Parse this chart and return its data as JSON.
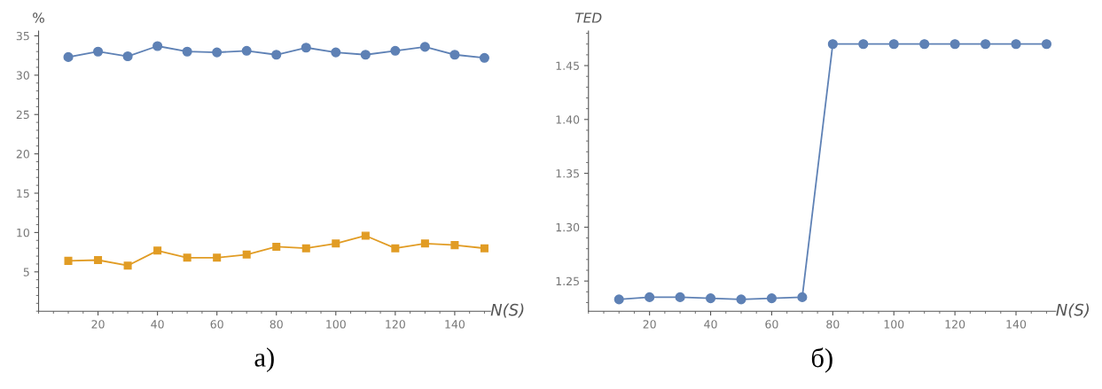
{
  "chart_data": [
    {
      "type": "line",
      "ylabel": "%",
      "xlabel": "N(S)",
      "annotations": [
        "а)"
      ],
      "x": [
        10,
        20,
        30,
        40,
        50,
        60,
        70,
        80,
        90,
        100,
        110,
        120,
        130,
        140,
        150
      ],
      "series": [
        {
          "color": "#5e81b5",
          "marker": "circle",
          "values": [
            32.3,
            33.0,
            32.4,
            33.7,
            33.0,
            32.9,
            33.1,
            32.6,
            33.5,
            32.9,
            32.6,
            33.1,
            33.6,
            32.6,
            32.2
          ]
        },
        {
          "color": "#e19c24",
          "marker": "square",
          "values": [
            6.4,
            6.5,
            5.8,
            7.7,
            6.8,
            6.8,
            7.2,
            8.2,
            8.0,
            8.6,
            9.6,
            8.0,
            8.6,
            8.4,
            8.0
          ]
        }
      ],
      "xlim": [
        0,
        152
      ],
      "ylim": [
        0,
        35.6
      ],
      "xticks": [
        20,
        40,
        60,
        80,
        100,
        120,
        140
      ],
      "yticks": [
        5,
        10,
        15,
        20,
        25,
        30,
        35
      ],
      "grid": false,
      "legend": false
    },
    {
      "type": "line",
      "ylabel": "TED",
      "xlabel": "N(S)",
      "annotations": [
        "б)"
      ],
      "x": [
        10,
        20,
        30,
        40,
        50,
        60,
        70,
        80,
        90,
        100,
        110,
        120,
        130,
        140,
        150
      ],
      "series": [
        {
          "color": "#5e81b5",
          "marker": "circle",
          "values": [
            1.233,
            1.235,
            1.235,
            1.234,
            1.233,
            1.234,
            1.235,
            1.47,
            1.47,
            1.47,
            1.47,
            1.47,
            1.47,
            1.47,
            1.47
          ]
        }
      ],
      "xlim": [
        0,
        153
      ],
      "ylim": [
        1.222,
        1.482
      ],
      "xticks": [
        20,
        40,
        60,
        80,
        100,
        120,
        140
      ],
      "yticks": [
        1.25,
        {
          "value": 1.3,
          "label": "1.30"
        },
        1.35,
        {
          "value": 1.4,
          "label": "1.40"
        },
        1.45
      ],
      "grid": false,
      "legend": false
    }
  ]
}
